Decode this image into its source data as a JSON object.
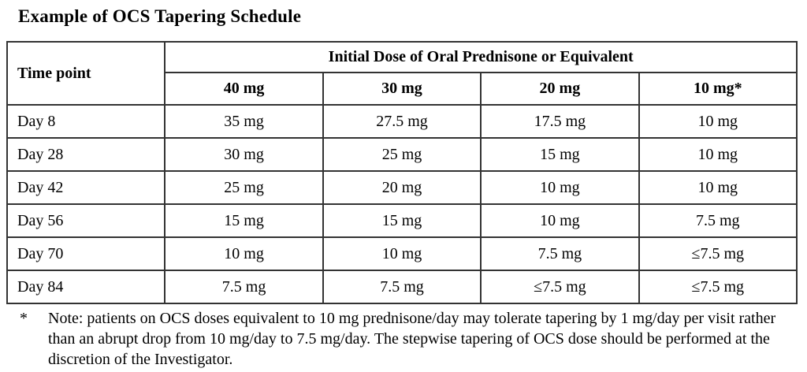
{
  "title": "Example of OCS Tapering Schedule",
  "table": {
    "corner_header": "Time point",
    "group_header": "Initial Dose of Oral Prednisone or Equivalent",
    "dose_columns": [
      "40 mg",
      "30 mg",
      "20 mg",
      "10 mg*"
    ],
    "rows": [
      {
        "time": "Day 8",
        "values": [
          "35 mg",
          "27.5 mg",
          "17.5 mg",
          "10 mg"
        ]
      },
      {
        "time": "Day 28",
        "values": [
          "30 mg",
          "25 mg",
          "15 mg",
          "10 mg"
        ]
      },
      {
        "time": "Day 42",
        "values": [
          "25 mg",
          "20 mg",
          "10 mg",
          "10 mg"
        ]
      },
      {
        "time": "Day 56",
        "values": [
          "15 mg",
          "15 mg",
          "10 mg",
          "7.5 mg"
        ]
      },
      {
        "time": "Day 70",
        "values": [
          "10 mg",
          "10 mg",
          "7.5 mg",
          "≤7.5 mg"
        ]
      },
      {
        "time": "Day 84",
        "values": [
          "7.5 mg",
          "7.5 mg",
          "≤7.5 mg",
          "≤7.5 mg"
        ]
      }
    ]
  },
  "footnote": {
    "marker": "*",
    "text": "Note: patients on OCS doses equivalent to 10 mg prednisone/day may tolerate tapering by 1 mg/day per visit rather than an abrupt drop from 10 mg/day to 7.5 mg/day. The stepwise tapering of OCS dose should be performed at the discretion of the Investigator."
  },
  "colors": {
    "text": "#000000",
    "border": "#333333",
    "background": "#ffffff"
  }
}
